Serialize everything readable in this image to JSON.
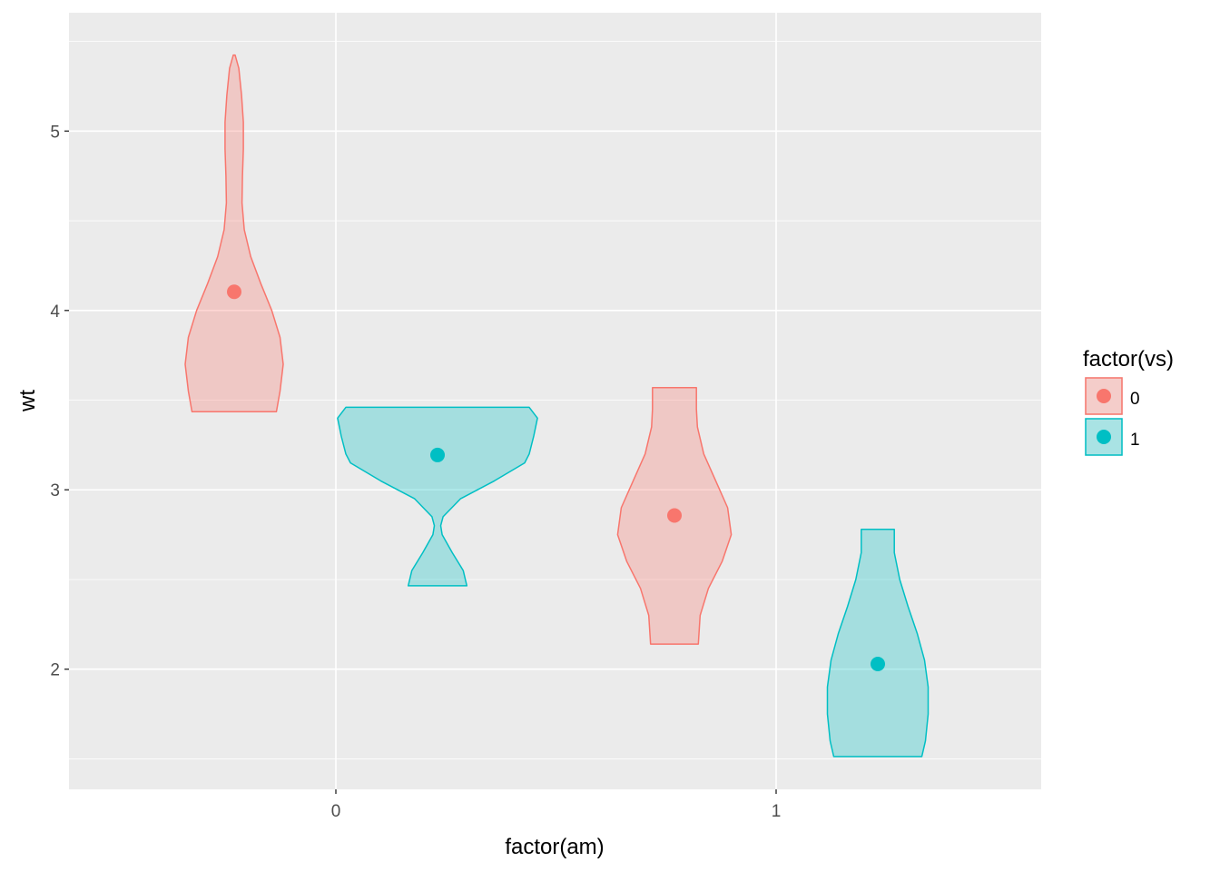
{
  "chart_data": {
    "type": "violin",
    "xlabel": "factor(am)",
    "ylabel": "wt",
    "x_categories": [
      "0",
      "1"
    ],
    "ylim": [
      1.33,
      5.66
    ],
    "y_ticks": [
      2,
      3,
      4,
      5
    ],
    "grid": true,
    "legend": {
      "title": "factor(vs)",
      "placement": "right",
      "entries": [
        {
          "label": "0",
          "color": "#F8766D"
        },
        {
          "label": "1",
          "color": "#00BFC4"
        }
      ]
    },
    "series": [
      {
        "name": "0",
        "color": "#F8766D",
        "groups": [
          {
            "x": "0",
            "y_min": 3.435,
            "y_max": 5.424,
            "point_y": 4.104,
            "profile": [
              [
                3.435,
                0.46
              ],
              [
                3.55,
                0.5
              ],
              [
                3.7,
                0.535
              ],
              [
                3.85,
                0.5
              ],
              [
                4.0,
                0.41
              ],
              [
                4.15,
                0.29
              ],
              [
                4.3,
                0.18
              ],
              [
                4.45,
                0.11
              ],
              [
                4.6,
                0.085
              ],
              [
                4.75,
                0.09
              ],
              [
                4.9,
                0.1
              ],
              [
                5.05,
                0.1
              ],
              [
                5.2,
                0.08
              ],
              [
                5.35,
                0.05
              ],
              [
                5.424,
                0.01
              ]
            ]
          },
          {
            "x": "1",
            "y_min": 2.14,
            "y_max": 3.57,
            "point_y": 2.857,
            "profile": [
              [
                2.14,
                0.26
              ],
              [
                2.3,
                0.28
              ],
              [
                2.45,
                0.37
              ],
              [
                2.6,
                0.52
              ],
              [
                2.75,
                0.62
              ],
              [
                2.9,
                0.58
              ],
              [
                3.05,
                0.45
              ],
              [
                3.2,
                0.32
              ],
              [
                3.35,
                0.25
              ],
              [
                3.45,
                0.24
              ],
              [
                3.57,
                0.24
              ]
            ]
          }
        ]
      },
      {
        "name": "1",
        "color": "#00BFC4",
        "groups": [
          {
            "x": "0",
            "y_min": 2.465,
            "y_max": 3.46,
            "point_y": 3.194,
            "profile": [
              [
                2.465,
                0.32
              ],
              [
                2.55,
                0.28
              ],
              [
                2.65,
                0.16
              ],
              [
                2.75,
                0.05
              ],
              [
                2.8,
                0.035
              ],
              [
                2.85,
                0.06
              ],
              [
                2.95,
                0.25
              ],
              [
                3.05,
                0.62
              ],
              [
                3.15,
                0.95
              ],
              [
                3.2,
                1.0
              ],
              [
                3.3,
                1.05
              ],
              [
                3.4,
                1.09
              ],
              [
                3.46,
                1.0
              ]
            ]
          },
          {
            "x": "1",
            "y_min": 1.513,
            "y_max": 2.78,
            "point_y": 2.029,
            "profile": [
              [
                1.513,
                0.48
              ],
              [
                1.6,
                0.52
              ],
              [
                1.75,
                0.55
              ],
              [
                1.9,
                0.55
              ],
              [
                2.05,
                0.51
              ],
              [
                2.2,
                0.43
              ],
              [
                2.35,
                0.33
              ],
              [
                2.5,
                0.24
              ],
              [
                2.65,
                0.18
              ],
              [
                2.78,
                0.18
              ]
            ]
          }
        ]
      }
    ]
  }
}
